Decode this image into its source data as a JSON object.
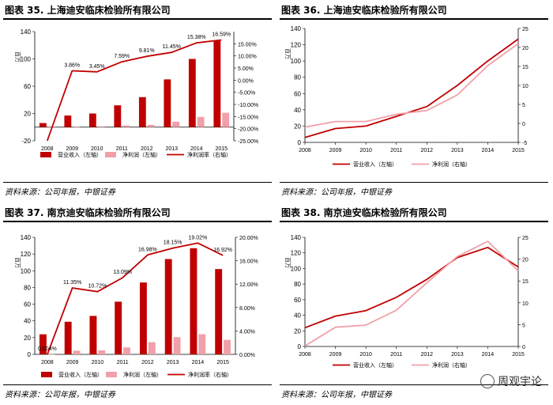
{
  "colors": {
    "bar": "#c00000",
    "bar2": "#f0a0a8",
    "line": "#c00000",
    "line2": "#f0a0a8"
  },
  "source_text": "资料来源：公司年报，中银证券",
  "watermark": "周观宇论",
  "chart_data": [
    {
      "type": "bar",
      "id": "c35",
      "title": "图表 35. 上海迪安临床检验所有限公司",
      "categories": [
        "2008",
        "2009",
        "2010",
        "2011",
        "2012",
        "2013",
        "2014",
        "2015"
      ],
      "ylabel_left": "百万",
      "ylim_left": [
        -20,
        140
      ],
      "yticks_left": [
        "-20",
        "20",
        "60",
        "100",
        "140"
      ],
      "ylim_right": [
        -25,
        20
      ],
      "yticks_right": [
        "-25.00%",
        "-20.00%",
        "-15.00%",
        "-10.00%",
        "-5.00%",
        "0.00%",
        "5.00%",
        "10.00%",
        "15.00%"
      ],
      "series": [
        {
          "name": "营业收入（左轴）",
          "kind": "bar",
          "axis": "left",
          "values": [
            6,
            17,
            20,
            32,
            44,
            70,
            100,
            127
          ]
        },
        {
          "name": "净利润（左轴）",
          "kind": "bar",
          "axis": "left",
          "values": [
            -1,
            0.5,
            0.7,
            2.4,
            3.4,
            8,
            15,
            21
          ]
        },
        {
          "name": "净利润率（右轴）",
          "kind": "line",
          "axis": "right",
          "values": [
            -25,
            3.86,
            3.45,
            7.59,
            9.81,
            11.45,
            15.38,
            16.59
          ]
        }
      ],
      "data_labels": [
        "",
        "3.86%",
        "3.45%",
        "7.59%",
        "9.81%",
        "11.45%",
        "15.38%",
        "16.59%"
      ]
    },
    {
      "type": "line",
      "id": "c36",
      "title": "图表 36. 上海迪安临床检验所有限公司",
      "categories": [
        "2008",
        "2009",
        "2010",
        "2011",
        "2012",
        "2013",
        "2014",
        "2015"
      ],
      "ylabel_left": "百万",
      "ylim_left": [
        0,
        140
      ],
      "yticks_left": [
        "0",
        "20",
        "40",
        "60",
        "80",
        "100",
        "120",
        "140"
      ],
      "ylim_right": [
        -5,
        25
      ],
      "yticks_right": [
        "-5",
        "0",
        "5",
        "10",
        "15",
        "20",
        "25"
      ],
      "series": [
        {
          "name": "营业收入（左轴）",
          "kind": "line",
          "axis": "left",
          "values": [
            6,
            17,
            20,
            32,
            44,
            70,
            100,
            127
          ]
        },
        {
          "name": "净利润（右轴）",
          "kind": "line",
          "axis": "right",
          "values": [
            -1,
            0.5,
            0.5,
            2.4,
            3.4,
            7.5,
            15.2,
            21
          ]
        }
      ]
    },
    {
      "type": "bar",
      "id": "c37",
      "title": "图表 37. 南京迪安临床检验所有限公司",
      "categories": [
        "2008",
        "2009",
        "2010",
        "2011",
        "2012",
        "2013",
        "2014",
        "2015"
      ],
      "ylabel_left": "百万",
      "ylim_left": [
        0,
        140
      ],
      "yticks_left": [
        "0",
        "20",
        "40",
        "60",
        "80",
        "100",
        "120",
        "140"
      ],
      "ylim_right": [
        0,
        20
      ],
      "yticks_right": [
        "0.00%",
        "4.00%",
        "8.00%",
        "12.00%",
        "16.00%",
        "20.00%"
      ],
      "series": [
        {
          "name": "营业收入（左轴）",
          "kind": "bar",
          "axis": "left",
          "values": [
            24,
            39,
            46,
            63,
            86,
            114,
            127,
            102
          ]
        },
        {
          "name": "净利润（左轴）",
          "kind": "bar",
          "axis": "left",
          "values": [
            0.1,
            4.4,
            4.9,
            8.3,
            14.6,
            20.6,
            24.1,
            17.3
          ]
        },
        {
          "name": "净利润率（右轴）",
          "kind": "line",
          "axis": "right",
          "values": [
            0.004,
            11.35,
            10.72,
            13.09,
            16.98,
            18.15,
            19.02,
            16.92
          ]
        }
      ],
      "data_labels": [
        "0.004%",
        "11.35%",
        "10.72%",
        "13.09%",
        "16.98%",
        "18.15%",
        "19.02%",
        "16.92%"
      ]
    },
    {
      "type": "line",
      "id": "c38",
      "title": "图表 38. 南京迪安临床检验所有限公司",
      "categories": [
        "2008",
        "2009",
        "2010",
        "2011",
        "2012",
        "2013",
        "2014",
        "2015"
      ],
      "ylabel_left": "百万",
      "ylim_left": [
        0,
        140
      ],
      "yticks_left": [
        "0",
        "20",
        "40",
        "60",
        "80",
        "100",
        "120",
        "140"
      ],
      "ylim_right": [
        0,
        25
      ],
      "yticks_right": [
        "0",
        "5",
        "10",
        "15",
        "20",
        "25"
      ],
      "series": [
        {
          "name": "营业收入（左轴）",
          "kind": "line",
          "axis": "left",
          "values": [
            24,
            39,
            46,
            63,
            86,
            114,
            127,
            102
          ]
        },
        {
          "name": "净利润（右轴）",
          "kind": "line",
          "axis": "right",
          "values": [
            0.1,
            4.4,
            4.9,
            8.3,
            14.6,
            20.6,
            24.1,
            17.3
          ]
        }
      ]
    }
  ]
}
